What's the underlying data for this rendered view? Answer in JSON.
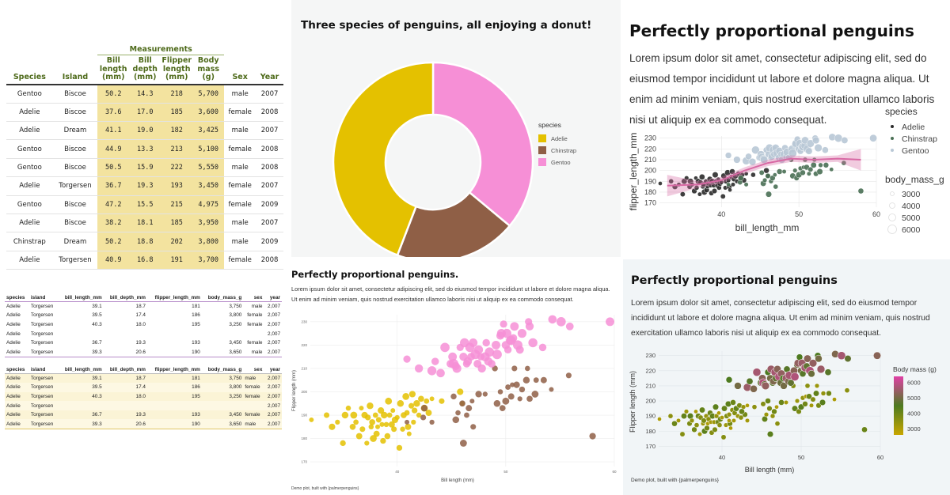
{
  "measure_table": {
    "spanner": "Measurements",
    "headers": [
      "Species",
      "Island",
      "Bill length (mm)",
      "Bill depth (mm)",
      "Flipper length (mm)",
      "Body mass (g)",
      "Sex",
      "Year"
    ],
    "rows": [
      [
        "Gentoo",
        "Biscoe",
        "50.2",
        "14.3",
        "218",
        "5,700",
        "male",
        "2007"
      ],
      [
        "Adelie",
        "Biscoe",
        "37.6",
        "17.0",
        "185",
        "3,600",
        "female",
        "2008"
      ],
      [
        "Adelie",
        "Dream",
        "41.1",
        "19.0",
        "182",
        "3,425",
        "male",
        "2007"
      ],
      [
        "Gentoo",
        "Biscoe",
        "44.9",
        "13.3",
        "213",
        "5,100",
        "female",
        "2008"
      ],
      [
        "Gentoo",
        "Biscoe",
        "50.5",
        "15.9",
        "222",
        "5,550",
        "male",
        "2008"
      ],
      [
        "Adelie",
        "Torgersen",
        "36.7",
        "19.3",
        "193",
        "3,450",
        "female",
        "2007"
      ],
      [
        "Gentoo",
        "Biscoe",
        "47.2",
        "15.5",
        "215",
        "4,975",
        "female",
        "2009"
      ],
      [
        "Adelie",
        "Biscoe",
        "38.2",
        "18.1",
        "185",
        "3,950",
        "male",
        "2007"
      ],
      [
        "Chinstrap",
        "Dream",
        "50.2",
        "18.8",
        "202",
        "3,800",
        "male",
        "2009"
      ],
      [
        "Adelie",
        "Torgersen",
        "40.9",
        "16.8",
        "191",
        "3,700",
        "female",
        "2008"
      ]
    ]
  },
  "small_table_headers": [
    "species",
    "island",
    "bill_length_mm",
    "bill_depth_mm",
    "flipper_length_mm",
    "body_mass_g",
    "sex",
    "year"
  ],
  "small_table_rows": [
    [
      "Adelie",
      "Torgersen",
      "39.1",
      "18.7",
      "181",
      "3,750",
      "male",
      "2,007"
    ],
    [
      "Adelie",
      "Torgersen",
      "39.5",
      "17.4",
      "186",
      "3,800",
      "female",
      "2,007"
    ],
    [
      "Adelie",
      "Torgersen",
      "40.3",
      "18.0",
      "195",
      "3,250",
      "female",
      "2,007"
    ],
    [
      "Adelie",
      "Torgersen",
      "",
      "",
      "",
      "",
      "",
      "2,007"
    ],
    [
      "Adelie",
      "Torgersen",
      "36.7",
      "19.3",
      "193",
      "3,450",
      "female",
      "2,007"
    ],
    [
      "Adelie",
      "Torgersen",
      "39.3",
      "20.6",
      "190",
      "3,650",
      "male",
      "2,007"
    ]
  ],
  "donut": {
    "title": "Three species of penguins, all enjoying a donut!",
    "legend_title": "species"
  },
  "pp1": {
    "title": "Perfectly proportional penguins",
    "body": "Lorem ipsum dolor sit amet, consectetur adipiscing elit, sed do eiusmod tempor incididunt ut labore et dolore magna aliqua. Ut enim ad minim veniam, quis nostrud exercitation ullamco laboris nisi ut aliquip ex ea commodo consequat.",
    "legend_species_title": "species",
    "legend_species": [
      "Adelie",
      "Chinstrap",
      "Gentoo"
    ],
    "legend_mass_title": "body_mass_g",
    "legend_mass": [
      "3000",
      "4000",
      "5000",
      "6000"
    ]
  },
  "pp2": {
    "title": "Perfectly proportional penguins.",
    "body": "Lorem ipsum dolor sit amet, consectetur adipiscing elit, sed do eiusmod tempor incididunt ut labore et dolore magna aliqua. Ut enim ad minim veniam, quis nostrud exercitation ullamco laboris nisi ut aliquip ex ea commodo consequat.",
    "caption": "Demo plot, built with {palmerpenguins}"
  },
  "pp3": {
    "title": "Perfectly proportional penguins",
    "body": "Lorem ipsum dolor sit amet, consectetur adipiscing elit, sed do eiusmod tempor incididunt ut labore et dolore magna aliqua. Ut enim ad minim veniam, quis nostrud exercitation ullamco laboris nisi ut aliquip ex ea commodo consequat.",
    "caption": "Demo plot, built with {palmerpenguins}",
    "legend_title": "Body mass (g)",
    "legend_ticks": [
      "6000",
      "5000",
      "4000",
      "3000"
    ]
  },
  "colors": {
    "adelie": "#e4c100",
    "chinstrap": "#8f5f46",
    "gentoo": "#f68fd6",
    "pp1_adelie": "#2b2b2b",
    "pp1_chinstrap": "#4a7055",
    "pp1_gentoo": "#b9c8d6",
    "pp1_smooth": "#d869a4",
    "pp3_low": "#c8a600",
    "pp3_mid": "#4d7a20",
    "pp3_high": "#e040a6",
    "table_header": "#4e6a1a"
  },
  "chart_data": [
    {
      "id": "donut",
      "type": "pie",
      "title": "Three species of penguins, all enjoying a donut!",
      "legend": "species",
      "categories": [
        "Adelie",
        "Chinstrap",
        "Gentoo"
      ],
      "values": [
        152,
        68,
        124
      ]
    },
    {
      "id": "pp1",
      "type": "scatter",
      "title": "Perfectly proportional penguins",
      "xlabel": "bill_length_mm",
      "ylabel": "flipper_length_mm",
      "xlim": [
        32,
        60
      ],
      "ylim": [
        166,
        232
      ],
      "xticks": [
        40,
        50,
        60
      ],
      "yticks": [
        170,
        180,
        190,
        200,
        210,
        220,
        230
      ],
      "smooth": [
        [
          33,
          186
        ],
        [
          37,
          187
        ],
        [
          40,
          191
        ],
        [
          43,
          200
        ],
        [
          46,
          207
        ],
        [
          49,
          211
        ],
        [
          52,
          210
        ],
        [
          55,
          211
        ],
        [
          58,
          210
        ]
      ],
      "series": [
        {
          "name": "Adelie",
          "points": [
            [
              32.1,
              188
            ],
            [
              33.5,
              190
            ],
            [
              34.0,
              185
            ],
            [
              34.5,
              187
            ],
            [
              35.0,
              178
            ],
            [
              35.2,
              190
            ],
            [
              35.5,
              193
            ],
            [
              35.9,
              185
            ],
            [
              36.0,
              190
            ],
            [
              36.2,
              187
            ],
            [
              36.5,
              181
            ],
            [
              36.7,
              193
            ],
            [
              36.8,
              184
            ],
            [
              37.0,
              190
            ],
            [
              37.2,
              178
            ],
            [
              37.3,
              189
            ],
            [
              37.5,
              194
            ],
            [
              37.6,
              185
            ],
            [
              37.7,
              187
            ],
            [
              37.8,
              180
            ],
            [
              38.0,
              190
            ],
            [
              38.1,
              182
            ],
            [
              38.2,
              185
            ],
            [
              38.3,
              188
            ],
            [
              38.5,
              192
            ],
            [
              38.6,
              186
            ],
            [
              38.7,
              179
            ],
            [
              38.8,
              190
            ],
            [
              39.0,
              186
            ],
            [
              39.1,
              181
            ],
            [
              39.2,
              196
            ],
            [
              39.3,
              190
            ],
            [
              39.5,
              186
            ],
            [
              39.6,
              192
            ],
            [
              39.7,
              184
            ],
            [
              39.8,
              188
            ],
            [
              40.0,
              189
            ],
            [
              40.2,
              176
            ],
            [
              40.3,
              195
            ],
            [
              40.5,
              184
            ],
            [
              40.6,
              190
            ],
            [
              40.8,
              198
            ],
            [
              40.9,
              191
            ],
            [
              41.0,
              185
            ],
            [
              41.1,
              182
            ],
            [
              41.3,
              194
            ],
            [
              41.4,
              199
            ],
            [
              41.5,
              187
            ],
            [
              41.6,
              192
            ],
            [
              41.8,
              195
            ],
            [
              42.0,
              190
            ],
            [
              42.2,
              197
            ],
            [
              42.5,
              193
            ],
            [
              42.7,
              196
            ],
            [
              42.9,
              191
            ],
            [
              43.2,
              197
            ],
            [
              44.1,
              196
            ],
            [
              45.8,
              200
            ],
            [
              46.0,
              195
            ]
          ]
        },
        {
          "name": "Chinstrap",
          "points": [
            [
              40.9,
              187
            ],
            [
              42.4,
              189
            ],
            [
              42.5,
              193
            ],
            [
              43.2,
              187
            ],
            [
              45.2,
              198
            ],
            [
              45.4,
              188
            ],
            [
              45.6,
              191
            ],
            [
              46.0,
              195
            ],
            [
              46.1,
              178
            ],
            [
              46.4,
              190
            ],
            [
              46.6,
              193
            ],
            [
              46.9,
              196
            ],
            [
              47.0,
              185
            ],
            [
              47.5,
              199
            ],
            [
              48.1,
              199
            ],
            [
              49.0,
              210
            ],
            [
              49.2,
              195
            ],
            [
              49.5,
              200
            ],
            [
              49.7,
              193
            ],
            [
              50.0,
              196
            ],
            [
              50.2,
              202
            ],
            [
              50.5,
              198
            ],
            [
              50.6,
              203
            ],
            [
              50.8,
              210
            ],
            [
              51.0,
              203
            ],
            [
              51.3,
              197
            ],
            [
              51.5,
              201
            ],
            [
              51.9,
              205
            ],
            [
              52.0,
              210
            ],
            [
              52.2,
              197
            ],
            [
              52.7,
              199
            ],
            [
              52.8,
              205
            ],
            [
              53.5,
              205
            ],
            [
              54.2,
              201
            ],
            [
              55.8,
              207
            ],
            [
              58.0,
              181
            ]
          ]
        },
        {
          "name": "Gentoo",
          "points": [
            [
              40.9,
              214
            ],
            [
              42.0,
              210
            ],
            [
              43.2,
              209
            ],
            [
              43.5,
              213
            ],
            [
              44.0,
              208
            ],
            [
              44.4,
              219
            ],
            [
              44.9,
              212
            ],
            [
              45.1,
              215
            ],
            [
              45.2,
              212
            ],
            [
              45.4,
              211
            ],
            [
              45.5,
              210
            ],
            [
              45.8,
              219
            ],
            [
              46.1,
              215
            ],
            [
              46.2,
              221
            ],
            [
              46.4,
              212
            ],
            [
              46.5,
              213
            ],
            [
              46.7,
              219
            ],
            [
              46.8,
              215
            ],
            [
              47.0,
              221
            ],
            [
              47.2,
              216
            ],
            [
              47.4,
              212
            ],
            [
              47.5,
              218
            ],
            [
              47.7,
              215
            ],
            [
              47.8,
              210
            ],
            [
              48.1,
              215
            ],
            [
              48.2,
              221
            ],
            [
              48.4,
              213
            ],
            [
              48.5,
              217
            ],
            [
              48.7,
              212
            ],
            [
              49.1,
              220
            ],
            [
              49.2,
              216
            ],
            [
              49.5,
              224
            ],
            [
              49.6,
              225
            ],
            [
              49.8,
              229
            ],
            [
              50.0,
              220
            ],
            [
              50.1,
              225
            ],
            [
              50.2,
              218
            ],
            [
              50.4,
              222
            ],
            [
              50.5,
              222
            ],
            [
              50.7,
              223
            ],
            [
              50.8,
              228
            ],
            [
              51.1,
              220
            ],
            [
              51.3,
              218
            ],
            [
              51.5,
              225
            ],
            [
              52.1,
              230
            ],
            [
              52.2,
              228
            ],
            [
              52.5,
              221
            ],
            [
              53.4,
              219
            ],
            [
              54.3,
              231
            ],
            [
              55.1,
              230
            ],
            [
              55.9,
              228
            ],
            [
              59.6,
              230
            ]
          ]
        }
      ]
    },
    {
      "id": "pp2",
      "type": "scatter",
      "title": "Perfectly proportional penguins.",
      "xlabel": "Bill length (mm)",
      "ylabel": "Flipper length (mm)",
      "xlim": [
        32,
        60
      ],
      "ylim": [
        168,
        233
      ],
      "xticks": [
        40,
        50,
        60
      ],
      "yticks": [
        170,
        180,
        190,
        200,
        210,
        220,
        230
      ],
      "series_ref": "pp1"
    },
    {
      "id": "pp3",
      "type": "scatter",
      "title": "Perfectly proportional penguins",
      "xlabel": "Bill length (mm)",
      "ylabel": "Flipper length (mm)",
      "xlim": [
        32,
        60
      ],
      "ylim": [
        166,
        233
      ],
      "xticks": [
        40,
        50,
        60
      ],
      "yticks": [
        170,
        180,
        190,
        200,
        210,
        220,
        230
      ],
      "color_by": "Body mass (g)",
      "color_range": [
        2700,
        6300
      ],
      "series_ref": "pp1"
    }
  ]
}
